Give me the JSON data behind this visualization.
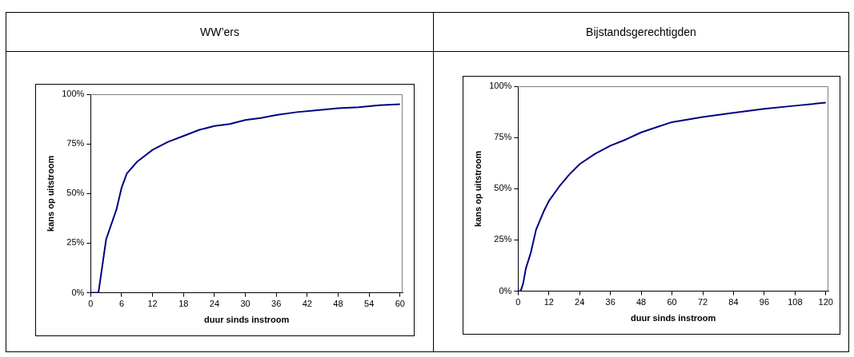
{
  "chart_data": [
    {
      "type": "line",
      "title": "WW’ers",
      "xlabel": "duur sinds instroom",
      "ylabel": "kans op uitstroom",
      "color": "#000080",
      "grid": false,
      "legend": false,
      "marker": "none",
      "line_style": "solid",
      "x": [
        0,
        1.5,
        3,
        5,
        6,
        7,
        9,
        12,
        15,
        18,
        21,
        24,
        27,
        30,
        33,
        36,
        40,
        44,
        48,
        52,
        56,
        60
      ],
      "values": [
        0,
        0,
        27,
        42,
        53,
        60,
        66,
        72,
        76,
        79,
        82,
        84,
        85,
        87,
        88,
        89.5,
        91,
        92,
        93,
        93.5,
        94.5,
        95
      ],
      "xlim": [
        0,
        60.5
      ],
      "xticks": [
        0,
        6,
        12,
        18,
        24,
        30,
        36,
        42,
        48,
        54,
        60
      ],
      "ylim": [
        0,
        100
      ],
      "yticks": [
        {
          "value": 0,
          "label": "0%"
        },
        {
          "value": 25,
          "label": "25%"
        },
        {
          "value": 50,
          "label": "50%"
        },
        {
          "value": 75,
          "label": "75%"
        },
        {
          "value": 100,
          "label": "100%"
        }
      ]
    },
    {
      "type": "line",
      "title": "Bijstandsgerechtigden",
      "xlabel": "duur sinds instroom",
      "ylabel": "kans op uitstroom",
      "color": "#000080",
      "grid": false,
      "legend": false,
      "marker": "none",
      "line_style": "solid",
      "x": [
        0,
        1,
        2,
        3,
        5,
        7,
        10,
        12,
        16,
        20,
        24,
        30,
        36,
        42,
        48,
        54,
        60,
        72,
        84,
        96,
        108,
        120
      ],
      "values": [
        0,
        0,
        4,
        11,
        19,
        30,
        39,
        44,
        51,
        57,
        62,
        67,
        71,
        74,
        77.5,
        80,
        82.5,
        85,
        87,
        89,
        90.5,
        92
      ],
      "xlim": [
        0,
        121
      ],
      "xticks": [
        0,
        12,
        24,
        36,
        48,
        60,
        72,
        84,
        96,
        108,
        120
      ],
      "ylim": [
        0,
        100
      ],
      "yticks": [
        {
          "value": 0,
          "label": "0%"
        },
        {
          "value": 25,
          "label": "25%"
        },
        {
          "value": 50,
          "label": "50%"
        },
        {
          "value": 75,
          "label": "75%"
        },
        {
          "value": 100,
          "label": "100%"
        }
      ]
    }
  ]
}
